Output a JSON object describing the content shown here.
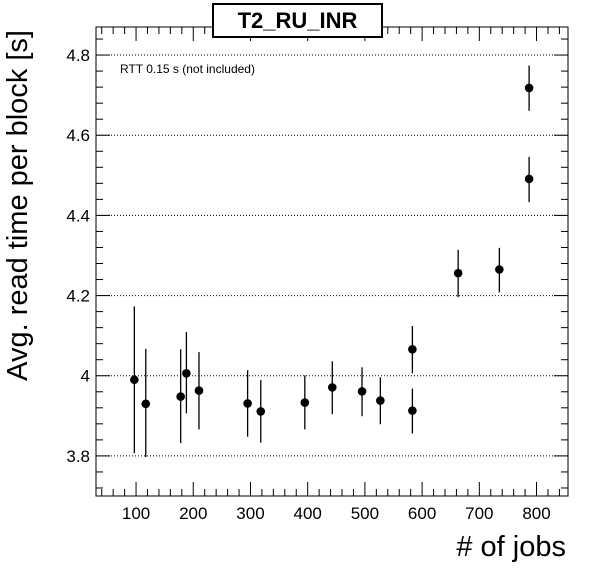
{
  "chart_data": {
    "type": "scatter",
    "title": "T2_RU_INR",
    "xlabel": "# of jobs",
    "ylabel": "Avg. read time per block [s]",
    "annotation": "RTT 0.15 s (not included)",
    "xlim": [
      30,
      855
    ],
    "ylim": [
      3.7,
      4.87
    ],
    "x_ticks": [
      100,
      200,
      300,
      400,
      500,
      600,
      700,
      800
    ],
    "x_tick_labels": [
      "100",
      "200",
      "300",
      "400",
      "500",
      "600",
      "700",
      "800"
    ],
    "y_ticks": [
      3.8,
      4.0,
      4.2,
      4.4,
      4.6,
      4.8
    ],
    "y_tick_labels": [
      "3.8",
      "4",
      "4.2",
      "4.4",
      "4.6",
      "4.8"
    ],
    "grid": "horizontal dotted",
    "series": [
      {
        "points": [
          {
            "x": 97,
            "y": 3.99,
            "err_low": 3.807,
            "err_high": 4.173
          },
          {
            "x": 117,
            "y": 3.93,
            "err_low": 3.797,
            "err_high": 4.067
          },
          {
            "x": 178,
            "y": 3.948,
            "err_low": 3.832,
            "err_high": 4.066
          },
          {
            "x": 188,
            "y": 4.006,
            "err_low": 3.906,
            "err_high": 4.109
          },
          {
            "x": 210,
            "y": 3.963,
            "err_low": 3.866,
            "err_high": 4.059
          },
          {
            "x": 295,
            "y": 3.931,
            "err_low": 3.848,
            "err_high": 4.014
          },
          {
            "x": 318,
            "y": 3.911,
            "err_low": 3.833,
            "err_high": 3.989
          },
          {
            "x": 395,
            "y": 3.933,
            "err_low": 3.866,
            "err_high": 4.001
          },
          {
            "x": 443,
            "y": 3.971,
            "err_low": 3.904,
            "err_high": 4.036
          },
          {
            "x": 495,
            "y": 3.961,
            "err_low": 3.899,
            "err_high": 4.021
          },
          {
            "x": 527,
            "y": 3.938,
            "err_low": 3.879,
            "err_high": 3.996
          },
          {
            "x": 583,
            "y": 4.066,
            "err_low": 4.006,
            "err_high": 4.124
          },
          {
            "x": 583,
            "y": 3.913,
            "err_low": 3.856,
            "err_high": 3.968
          },
          {
            "x": 663,
            "y": 4.256,
            "err_low": 4.196,
            "err_high": 4.314
          },
          {
            "x": 735,
            "y": 4.265,
            "err_low": 4.208,
            "err_high": 4.319
          },
          {
            "x": 787,
            "y": 4.491,
            "err_low": 4.433,
            "err_high": 4.546
          },
          {
            "x": 787,
            "y": 4.718,
            "err_low": 4.661,
            "err_high": 4.774
          }
        ]
      }
    ]
  }
}
